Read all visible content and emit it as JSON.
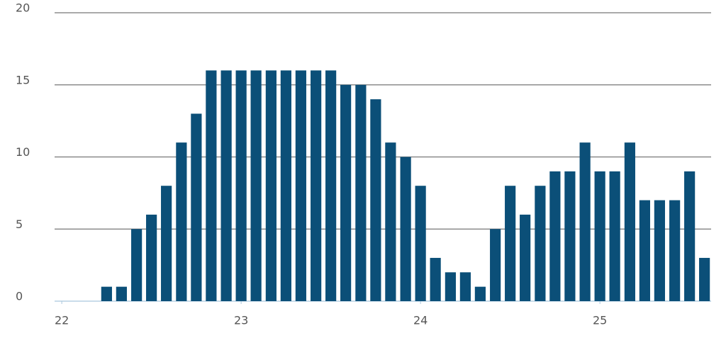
{
  "chart_data": {
    "type": "bar",
    "color": "#0b4f78",
    "x": [
      22,
      22.083,
      22.167,
      22.25,
      22.333,
      22.417,
      22.5,
      22.583,
      22.667,
      22.75,
      22.833,
      22.917,
      23,
      23.083,
      23.167,
      23.25,
      23.333,
      23.417,
      23.5,
      23.583,
      23.667,
      23.75,
      23.833,
      23.917,
      24,
      24.083,
      24.167,
      24.25,
      24.333,
      24.417,
      24.5,
      24.583,
      24.667,
      24.75,
      24.833,
      24.917,
      25,
      25.083,
      25.167,
      25.25,
      25.333,
      25.417,
      25.5,
      25.583
    ],
    "values": [
      0,
      0,
      0,
      1,
      1,
      5,
      6,
      8,
      11,
      13,
      16,
      16,
      16,
      16,
      16,
      16,
      16,
      16,
      16,
      15,
      15,
      14,
      11,
      10,
      8,
      3,
      2,
      2,
      1,
      5,
      8,
      6,
      8,
      9,
      9,
      11,
      9,
      9,
      11,
      7,
      7,
      7,
      9,
      3
    ],
    "xlim": [
      21.96,
      25.62
    ],
    "xticks": [
      22,
      23,
      24,
      25
    ],
    "ylim": [
      0,
      20
    ],
    "yticks": [
      0,
      5,
      10,
      15,
      20
    ],
    "grid": true
  }
}
